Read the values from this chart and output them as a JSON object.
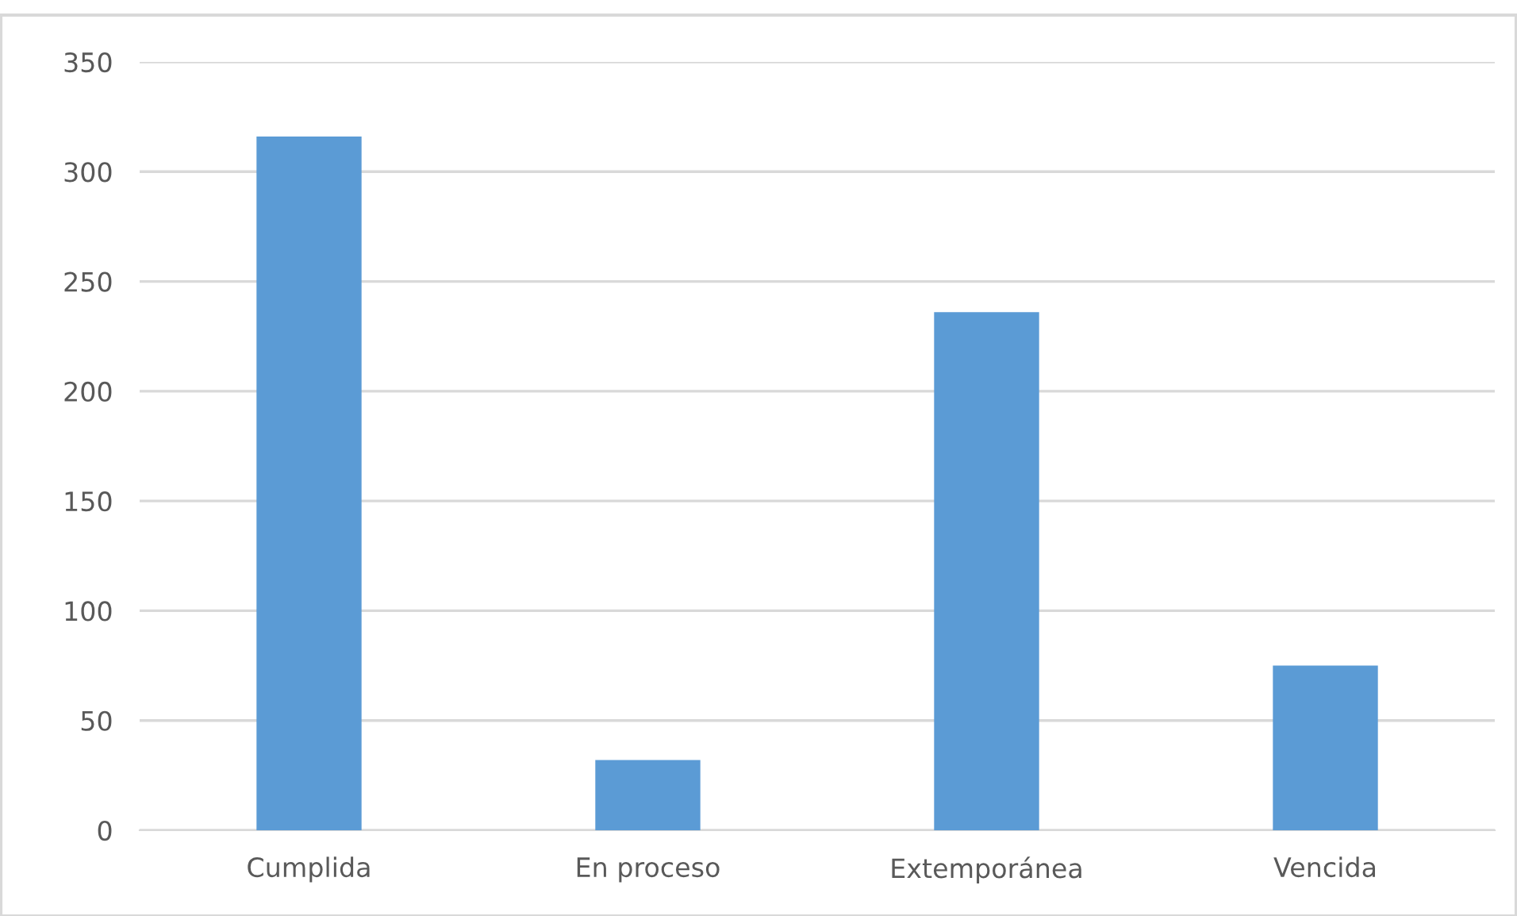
{
  "chart_data": {
    "type": "bar",
    "categories": [
      "Cumplida",
      "En proceso",
      "Extemporánea",
      "Vencida"
    ],
    "values": [
      316,
      32,
      236,
      75
    ],
    "color": "#5b9bd5",
    "ylim": [
      0,
      350
    ],
    "yticks": [
      0,
      50,
      100,
      150,
      200,
      250,
      300,
      350
    ],
    "grid": "y",
    "legend": false
  }
}
